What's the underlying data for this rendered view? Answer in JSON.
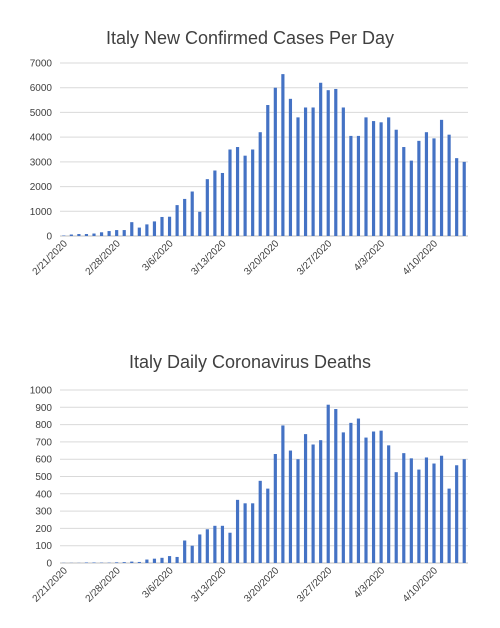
{
  "colors": {
    "bar": "#4472c4",
    "grid": "#d9d9d9",
    "axis": "#bfbfbf",
    "text": "#404040"
  },
  "chart_data": [
    {
      "type": "bar",
      "title": "Italy New Confirmed Cases Per Day",
      "xlabel": "",
      "ylabel": "",
      "ylim": [
        0,
        7000
      ],
      "yticks": [
        0,
        1000,
        2000,
        3000,
        4000,
        5000,
        6000,
        7000
      ],
      "grid": true,
      "legend": "none",
      "xtick_labels": [
        "2/21/2020",
        "2/28/2020",
        "3/6/2020",
        "3/13/2020",
        "3/20/2020",
        "3/27/2020",
        "4/3/2020",
        "4/10/2020"
      ],
      "categories": [
        "2/21/2020",
        "2/22/2020",
        "2/23/2020",
        "2/24/2020",
        "2/25/2020",
        "2/26/2020",
        "2/27/2020",
        "2/28/2020",
        "2/29/2020",
        "3/1/2020",
        "3/2/2020",
        "3/3/2020",
        "3/4/2020",
        "3/5/2020",
        "3/6/2020",
        "3/7/2020",
        "3/8/2020",
        "3/9/2020",
        "3/10/2020",
        "3/11/2020",
        "3/12/2020",
        "3/13/2020",
        "3/14/2020",
        "3/15/2020",
        "3/16/2020",
        "3/17/2020",
        "3/18/2020",
        "3/19/2020",
        "3/20/2020",
        "3/21/2020",
        "3/22/2020",
        "3/23/2020",
        "3/24/2020",
        "3/25/2020",
        "3/26/2020",
        "3/27/2020",
        "3/28/2020",
        "3/29/2020",
        "3/30/2020",
        "3/31/2020",
        "4/1/2020",
        "4/2/2020",
        "4/3/2020",
        "4/4/2020",
        "4/5/2020",
        "4/6/2020",
        "4/7/2020",
        "4/8/2020",
        "4/9/2020",
        "4/10/2020",
        "4/11/2020",
        "4/12/2020",
        "4/13/2020",
        "4/14/2020"
      ],
      "values": [
        20,
        60,
        80,
        80,
        100,
        150,
        200,
        240,
        240,
        560,
        340,
        470,
        590,
        770,
        780,
        1250,
        1500,
        1800,
        980,
        2300,
        2650,
        2550,
        3500,
        3600,
        3250,
        3500,
        4200,
        5300,
        6000,
        6550,
        5550,
        4800,
        5200,
        5200,
        6200,
        5900,
        5950,
        5200,
        4050,
        4050,
        4800,
        4650,
        4600,
        4800,
        4300,
        3600,
        3050,
        3850,
        4200,
        3950,
        4700,
        4100,
        3150,
        3000
      ]
    },
    {
      "type": "bar",
      "title": "Italy Daily Coronavirus Deaths",
      "xlabel": "",
      "ylabel": "",
      "ylim": [
        0,
        1000
      ],
      "yticks": [
        0,
        100,
        200,
        300,
        400,
        500,
        600,
        700,
        800,
        900,
        1000
      ],
      "grid": true,
      "legend": "none",
      "xtick_labels": [
        "2/21/2020",
        "2/28/2020",
        "3/6/2020",
        "3/13/2020",
        "3/20/2020",
        "3/27/2020",
        "4/3/2020",
        "4/10/2020"
      ],
      "categories": [
        "2/21/2020",
        "2/22/2020",
        "2/23/2020",
        "2/24/2020",
        "2/25/2020",
        "2/26/2020",
        "2/27/2020",
        "2/28/2020",
        "2/29/2020",
        "3/1/2020",
        "3/2/2020",
        "3/3/2020",
        "3/4/2020",
        "3/5/2020",
        "3/6/2020",
        "3/7/2020",
        "3/8/2020",
        "3/9/2020",
        "3/10/2020",
        "3/11/2020",
        "3/12/2020",
        "3/13/2020",
        "3/14/2020",
        "3/15/2020",
        "3/16/2020",
        "3/17/2020",
        "3/18/2020",
        "3/19/2020",
        "3/20/2020",
        "3/21/2020",
        "3/22/2020",
        "3/23/2020",
        "3/24/2020",
        "3/25/2020",
        "3/26/2020",
        "3/27/2020",
        "3/28/2020",
        "3/29/2020",
        "3/30/2020",
        "3/31/2020",
        "4/1/2020",
        "4/2/2020",
        "4/3/2020",
        "4/4/2020",
        "4/5/2020",
        "4/6/2020",
        "4/7/2020",
        "4/8/2020",
        "4/9/2020",
        "4/10/2020",
        "4/11/2020",
        "4/12/2020",
        "4/13/2020",
        "4/14/2020"
      ],
      "values": [
        1,
        1,
        1,
        3,
        3,
        2,
        2,
        4,
        5,
        8,
        6,
        20,
        25,
        30,
        40,
        35,
        130,
        100,
        165,
        195,
        215,
        215,
        175,
        365,
        345,
        345,
        475,
        430,
        630,
        795,
        650,
        600,
        745,
        685,
        710,
        915,
        890,
        755,
        810,
        835,
        725,
        760,
        765,
        680,
        525,
        635,
        605,
        540,
        610,
        575,
        620,
        430,
        565,
        600
      ]
    }
  ]
}
